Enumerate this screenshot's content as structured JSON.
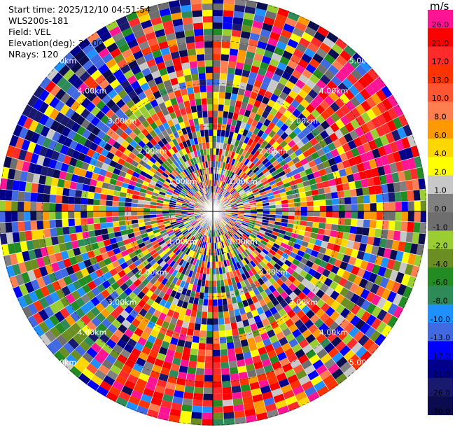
{
  "header": {
    "start_time": "Start time: 2025/12/10 04:51:54",
    "instrument": "WLS200s-181",
    "field": "Field: VEL",
    "elevation": "Elevation(deg): 35.00",
    "nrays": "NRays: 120"
  },
  "chart_data": {
    "type": "heatmap",
    "subtype": "polar-ppi",
    "field": "VEL",
    "n_rays": 120,
    "elevation_deg": 35.0,
    "range_rings": [
      "1.00km",
      "2.00km",
      "3.00km",
      "4.00km",
      "5.00km"
    ],
    "colorbar": {
      "unit": "m/s",
      "ticks": [
        "26.0",
        "21.0",
        "17.0",
        "13.0",
        "10.0",
        "8.0",
        "6.0",
        "4.0",
        "2.0",
        "1.0",
        "0.0",
        "-1.0",
        "-2.0",
        "-4.0",
        "-6.0",
        "-8.0",
        "-10.0",
        "-13.0",
        "-17.0",
        "-21.0",
        "-26.0",
        "-30.0"
      ],
      "colors": [
        "#ff1493",
        "#ff0000",
        "#ff2a2a",
        "#ff3300",
        "#ff5533",
        "#ff7f50",
        "#ff9900",
        "#ffd700",
        "#ffff00",
        "#c8c8c8",
        "#808080",
        "#6e6e6e",
        "#9acd32",
        "#6b8e23",
        "#228b22",
        "#2e8b57",
        "#1e90ff",
        "#4169e1",
        "#0000ff",
        "#00008b",
        "#191970",
        "#0b0b50"
      ]
    }
  }
}
